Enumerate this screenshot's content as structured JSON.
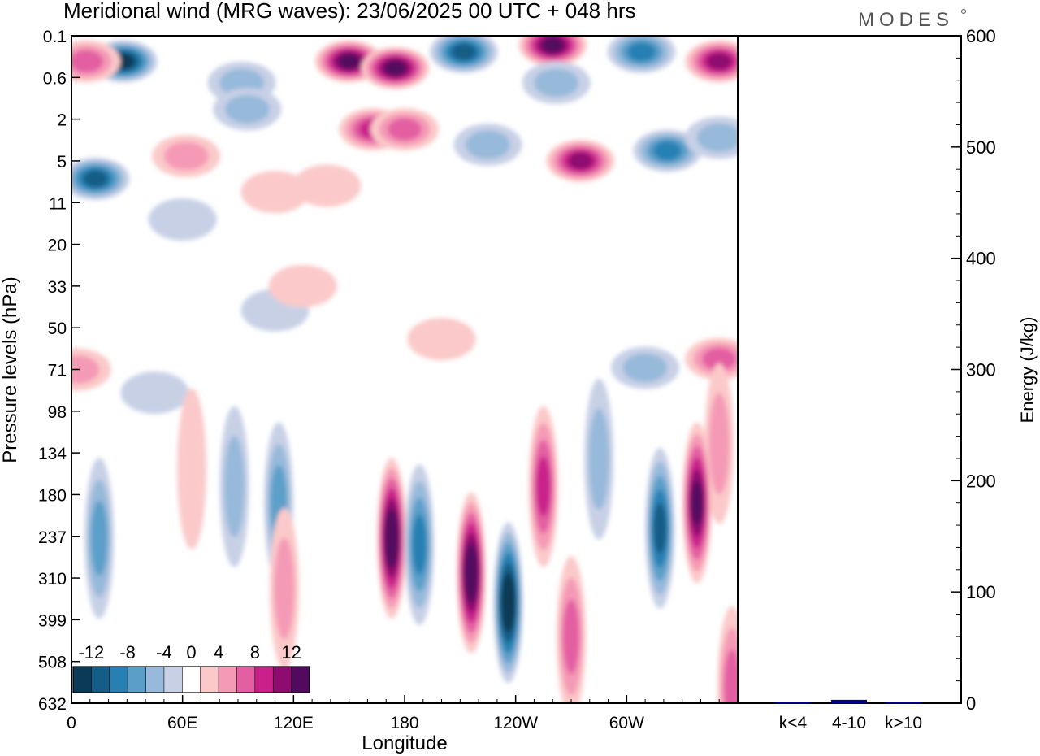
{
  "title": "Meridional wind (MRG waves):  23/06/2025  00 UTC  + 048 hrs",
  "logo_text": "MODES",
  "chart_data": [
    {
      "type": "heatmap",
      "xlabel": "Longitude",
      "ylabel": "Pressure levels (hPa)",
      "x_ticks": [
        "0",
        "60E",
        "120E",
        "180",
        "120W",
        "60W"
      ],
      "x_tick_degrees": [
        0,
        60,
        120,
        180,
        240,
        300
      ],
      "xlim": [
        0,
        360
      ],
      "y_ticks": [
        "0.1",
        "0.6",
        "2",
        "5",
        "11",
        "20",
        "33",
        "50",
        "71",
        "98",
        "134",
        "180",
        "237",
        "310",
        "399",
        "508",
        "632"
      ],
      "colorbar": {
        "tick_labels": [
          "-12",
          "-8",
          "-4",
          "0",
          "4",
          "8",
          "12"
        ],
        "levels": [
          -14,
          -12,
          -10,
          -8,
          -6,
          -4,
          -2,
          2,
          4,
          6,
          8,
          10,
          12,
          14
        ],
        "colors": [
          "#0a3a55",
          "#145d86",
          "#2780b3",
          "#5b9fc9",
          "#97b9da",
          "#c8d0e6",
          "#ffffff",
          "#fbc9c9",
          "#f59ab6",
          "#e35ea2",
          "#c9208a",
          "#8e0c70",
          "#520a5e"
        ]
      },
      "features": [
        {
          "lon": 28,
          "level": "0.3",
          "value": -13
        },
        {
          "lon": 150,
          "level": "0.3",
          "value": 14
        },
        {
          "lon": 175,
          "level": "0.4",
          "value": 13
        },
        {
          "lon": 212,
          "level": "0.2",
          "value": -11
        },
        {
          "lon": 260,
          "level": "0.15",
          "value": 13
        },
        {
          "lon": 308,
          "level": "0.2",
          "value": -10
        },
        {
          "lon": 350,
          "level": "0.3",
          "value": 11
        },
        {
          "lon": 8,
          "level": "0.3",
          "value": 8
        },
        {
          "lon": 92,
          "level": "0.7",
          "value": -6
        },
        {
          "lon": 262,
          "level": "0.7",
          "value": -5
        },
        {
          "lon": 95,
          "level": "1.5",
          "value": -5
        },
        {
          "lon": 163,
          "level": "2.5",
          "value": 10
        },
        {
          "lon": 180,
          "level": "2.5",
          "value": 8
        },
        {
          "lon": 225,
          "level": "3.5",
          "value": -6
        },
        {
          "lon": 275,
          "level": "5",
          "value": 12
        },
        {
          "lon": 322,
          "level": "4",
          "value": -9
        },
        {
          "lon": 350,
          "level": "3",
          "value": -5
        },
        {
          "lon": 13,
          "level": "7",
          "value": -11
        },
        {
          "lon": 62,
          "level": "4.5",
          "value": 5
        },
        {
          "lon": 110,
          "level": "9",
          "value": 4
        },
        {
          "lon": 138,
          "level": "8",
          "value": 4
        },
        {
          "lon": 60,
          "level": "14",
          "value": -3
        },
        {
          "lon": 110,
          "level": "42",
          "value": -3
        },
        {
          "lon": 125,
          "level": "33",
          "value": 4
        },
        {
          "lon": 200,
          "level": "55",
          "value": 3
        },
        {
          "lon": 350,
          "level": "65",
          "value": 8
        },
        {
          "lon": 3,
          "level": "71",
          "value": 5
        },
        {
          "lon": 310,
          "level": "70",
          "value": -5
        },
        {
          "lon": 45,
          "level": "85",
          "value": -3
        },
        {
          "lon": 350,
          "level": "125",
          "value": 5
        },
        {
          "lon": 15,
          "level": "240",
          "value": -7
        },
        {
          "lon": 65,
          "level": "150",
          "value": 3
        },
        {
          "lon": 88,
          "level": "170",
          "value": -5
        },
        {
          "lon": 112,
          "level": "190",
          "value": -8
        },
        {
          "lon": 115,
          "level": "330",
          "value": 5
        },
        {
          "lon": 173,
          "level": "240",
          "value": 15
        },
        {
          "lon": 188,
          "level": "250",
          "value": -10
        },
        {
          "lon": 216,
          "level": "300",
          "value": 15
        },
        {
          "lon": 236,
          "level": "360",
          "value": -15
        },
        {
          "lon": 255,
          "level": "170",
          "value": 10
        },
        {
          "lon": 270,
          "level": "440",
          "value": 8
        },
        {
          "lon": 285,
          "level": "140",
          "value": -5
        },
        {
          "lon": 318,
          "level": "225",
          "value": -12
        },
        {
          "lon": 338,
          "level": "190",
          "value": 14
        },
        {
          "lon": 357,
          "level": "580",
          "value": 8
        }
      ]
    },
    {
      "type": "bar",
      "categories": [
        "k<4",
        "4-10",
        "k>10"
      ],
      "values": [
        0.5,
        3,
        0.3
      ],
      "ylabel": "Energy (J/kg)",
      "ylim": [
        0,
        600
      ],
      "y_ticks": [
        0,
        100,
        200,
        300,
        400,
        500,
        600
      ],
      "bar_color": "#00008b"
    }
  ]
}
